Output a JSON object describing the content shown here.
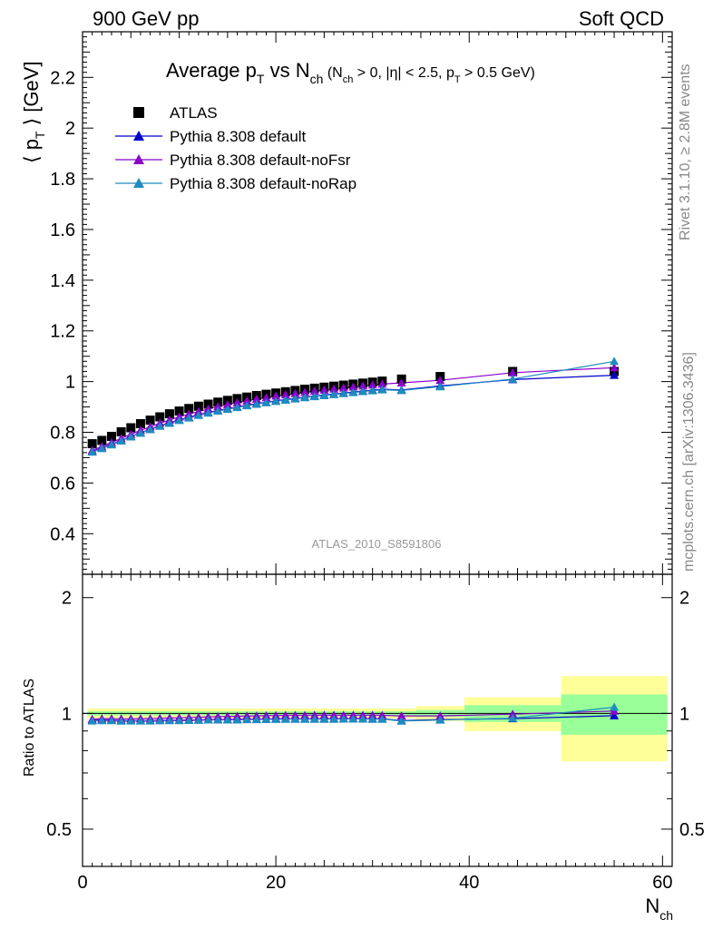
{
  "header": {
    "left": "900 GeV pp",
    "right": "Soft QCD"
  },
  "side_labels": {
    "rivet": "Rivet 3.1.10, ≥ 2.8M events",
    "mcplots": "mcplots.cern.ch [arXiv:1306.3436]"
  },
  "watermark": "ATLAS_2010_S8591806",
  "title": {
    "main_prefix": "Average p",
    "main_sub1": "T",
    "main_mid": " vs N",
    "main_sub2": "ch",
    "cond_a": " (N",
    "cond_a_sub": "ch",
    "cond_b": " > 0, |η| < 2.5, p",
    "cond_b_sub": "T",
    "cond_c": " > 0.5 GeV)"
  },
  "axes": {
    "ylabel_a": "⟨ p",
    "ylabel_sub": "T",
    "ylabel_b": " ⟩ [GeV]",
    "ratio_ylabel": "Ratio to ATLAS",
    "xlabel": "N",
    "xlabel_sub": "ch"
  },
  "chart_data": {
    "type": "scatter",
    "x_range": [
      0,
      61
    ],
    "main": {
      "ylim": [
        0.24,
        2.38
      ],
      "y_ticks": [
        "0.4",
        "0.6",
        "0.8",
        "1",
        "1.2",
        "1.4",
        "1.6",
        "1.8",
        "2",
        "2.2"
      ]
    },
    "ratio": {
      "ylim": [
        0.4,
        2.3
      ],
      "scale": "log",
      "y_ticks": [
        "0.5",
        "1",
        "2"
      ]
    },
    "x_ticks": [
      "0",
      "20",
      "40",
      "60"
    ],
    "x": [
      1,
      2,
      3,
      4,
      5,
      6,
      7,
      8,
      9,
      10,
      11,
      12,
      13,
      14,
      15,
      16,
      17,
      18,
      19,
      20,
      21,
      22,
      23,
      24,
      25,
      26,
      27,
      28,
      29,
      30,
      31,
      33,
      37,
      44.5,
      55
    ],
    "series": [
      {
        "name": "ATLAS",
        "marker": "square",
        "color": "#000000",
        "values": [
          0.755,
          0.768,
          0.784,
          0.802,
          0.818,
          0.834,
          0.848,
          0.861,
          0.873,
          0.884,
          0.894,
          0.903,
          0.911,
          0.919,
          0.926,
          0.933,
          0.939,
          0.945,
          0.95,
          0.955,
          0.96,
          0.965,
          0.97,
          0.974,
          0.978,
          0.982,
          0.986,
          0.99,
          0.994,
          0.998,
          1.002,
          1.01,
          1.02,
          1.04,
          1.04
        ]
      },
      {
        "name": "Pythia 8.308 default",
        "marker": "triangle",
        "color": "#0000cc",
        "values": [
          0.724,
          0.738,
          0.753,
          0.768,
          0.784,
          0.798,
          0.812,
          0.826,
          0.838,
          0.849,
          0.859,
          0.869,
          0.878,
          0.886,
          0.893,
          0.9,
          0.907,
          0.913,
          0.918,
          0.924,
          0.929,
          0.934,
          0.939,
          0.943,
          0.947,
          0.951,
          0.955,
          0.959,
          0.963,
          0.966,
          0.97,
          0.967,
          0.983,
          1.008,
          1.025
        ]
      },
      {
        "name": "Pythia 8.308 default-noFsr",
        "marker": "triangle",
        "color": "#8800cc",
        "values": [
          0.729,
          0.744,
          0.76,
          0.776,
          0.792,
          0.808,
          0.822,
          0.836,
          0.849,
          0.861,
          0.872,
          0.882,
          0.892,
          0.901,
          0.909,
          0.917,
          0.924,
          0.931,
          0.937,
          0.943,
          0.948,
          0.953,
          0.958,
          0.963,
          0.967,
          0.971,
          0.975,
          0.979,
          0.983,
          0.987,
          0.99,
          0.995,
          1.005,
          1.035,
          1.055
        ]
      },
      {
        "name": "Pythia 8.308 default-noRap",
        "marker": "triangle",
        "color": "#1e8cbe",
        "values": [
          0.722,
          0.736,
          0.751,
          0.766,
          0.782,
          0.797,
          0.811,
          0.824,
          0.836,
          0.847,
          0.857,
          0.867,
          0.876,
          0.884,
          0.891,
          0.898,
          0.905,
          0.911,
          0.917,
          0.922,
          0.927,
          0.932,
          0.937,
          0.941,
          0.945,
          0.949,
          0.953,
          0.957,
          0.961,
          0.964,
          0.968,
          0.965,
          0.98,
          1.01,
          1.08
        ]
      }
    ],
    "ratio_series": [
      {
        "name": "Pythia 8.308 default",
        "color": "#0000cc",
        "values": [
          0.959,
          0.961,
          0.961,
          0.958,
          0.958,
          0.957,
          0.957,
          0.959,
          0.96,
          0.96,
          0.961,
          0.962,
          0.964,
          0.964,
          0.964,
          0.965,
          0.966,
          0.966,
          0.966,
          0.968,
          0.968,
          0.968,
          0.968,
          0.968,
          0.968,
          0.968,
          0.969,
          0.969,
          0.969,
          0.968,
          0.968,
          0.957,
          0.964,
          0.969,
          0.986
        ]
      },
      {
        "name": "Pythia 8.308 default-noFsr",
        "color": "#8800cc",
        "values": [
          0.966,
          0.969,
          0.969,
          0.968,
          0.968,
          0.969,
          0.969,
          0.971,
          0.973,
          0.974,
          0.975,
          0.977,
          0.979,
          0.98,
          0.982,
          0.983,
          0.984,
          0.985,
          0.986,
          0.987,
          0.988,
          0.988,
          0.988,
          0.989,
          0.989,
          0.989,
          0.989,
          0.989,
          0.989,
          0.989,
          0.988,
          0.985,
          0.985,
          0.995,
          1.014
        ]
      },
      {
        "name": "Pythia 8.308 default-noRap",
        "color": "#1e8cbe",
        "values": [
          0.956,
          0.958,
          0.958,
          0.955,
          0.956,
          0.956,
          0.956,
          0.957,
          0.958,
          0.958,
          0.959,
          0.96,
          0.962,
          0.962,
          0.962,
          0.962,
          0.964,
          0.964,
          0.965,
          0.965,
          0.966,
          0.966,
          0.966,
          0.966,
          0.966,
          0.966,
          0.967,
          0.967,
          0.967,
          0.966,
          0.966,
          0.955,
          0.961,
          0.971,
          1.038
        ]
      }
    ],
    "uncertainty_bands": {
      "inner_color": "#99ff99",
      "outer_color": "#ffff99",
      "bins": [
        {
          "x0": 0.5,
          "x1": 34.5,
          "inner": 0.012,
          "outer": 0.03
        },
        {
          "x0": 34.5,
          "x1": 39.5,
          "inner": 0.02,
          "outer": 0.045
        },
        {
          "x0": 39.5,
          "x1": 49.5,
          "inner": 0.05,
          "outer": 0.1
        },
        {
          "x0": 49.5,
          "x1": 60.5,
          "inner": 0.12,
          "outer": 0.25
        }
      ]
    },
    "legend_position": "top-left",
    "grid": false
  }
}
